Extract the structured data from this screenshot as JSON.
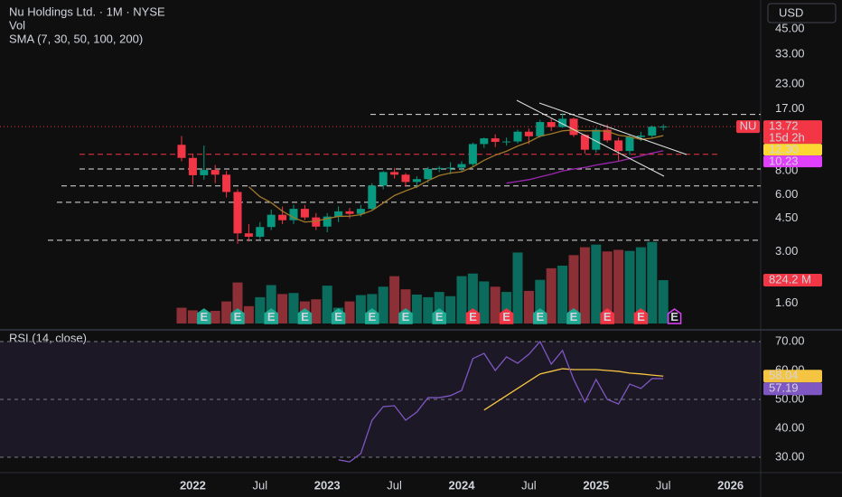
{
  "chart_data": [
    {
      "type": "candlestick",
      "title": "Nu Holdings Ltd. · 1M · NYSE",
      "currency": "USD",
      "symbol": "NU",
      "countdown": "15d 2h",
      "indicator": "SMA (7, 30, 50, 100, 200)",
      "log_scale": true,
      "up_color": "#089981",
      "down_color": "#f23645",
      "categories": [
        null,
        "2022",
        null,
        null,
        null,
        null,
        null,
        "Jul",
        null,
        null,
        null,
        null,
        null,
        "2023",
        null,
        null,
        null,
        null,
        null,
        "Jul",
        null,
        null,
        null,
        null,
        null,
        "2024",
        null,
        null,
        null,
        null,
        null,
        "Jul",
        null,
        null,
        null,
        null,
        null,
        "2025",
        null,
        null,
        null,
        null,
        null,
        "Jul",
        null,
        null,
        null,
        null,
        null,
        "2026",
        null,
        null
      ],
      "open": [
        11.0,
        9.38,
        7.6,
        8.1,
        7.65,
        6.2,
        3.75,
        3.6,
        4.05,
        4.7,
        4.4,
        5.05,
        4.55,
        4.07,
        4.6,
        4.9,
        4.75,
        5.05,
        6.7,
        7.9,
        7.65,
        7.0,
        7.25,
        8.2,
        8.3,
        8.33,
        8.7,
        11.1,
        11.9,
        11.4,
        11.45,
        12.9,
        12.2,
        14.5,
        13.65,
        15.1,
        12.4,
        10.36,
        13.2,
        11.6,
        10.2,
        12.1,
        12.3,
        13.7,
        null,
        null,
        null,
        null,
        null,
        null,
        null,
        null
      ],
      "high": [
        12.24,
        9.9,
        10.9,
        8.6,
        8.0,
        6.4,
        4.2,
        4.3,
        5.0,
        5.2,
        5.3,
        5.3,
        4.8,
        4.8,
        5.2,
        5.1,
        5.3,
        6.9,
        8.0,
        8.3,
        7.8,
        7.5,
        8.4,
        8.5,
        8.9,
        9.0,
        11.3,
        12.0,
        12.5,
        12.0,
        13.2,
        13.4,
        14.9,
        15.2,
        16.1,
        15.3,
        12.5,
        13.5,
        14.1,
        12.0,
        12.4,
        12.9,
        13.9,
        14.1,
        null,
        null,
        null,
        null,
        null,
        null,
        null,
        null
      ],
      "low": [
        9.0,
        6.8,
        7.2,
        6.9,
        5.8,
        3.3,
        3.4,
        3.5,
        3.9,
        4.2,
        4.2,
        4.4,
        3.9,
        3.8,
        4.3,
        4.5,
        4.6,
        5.0,
        6.4,
        7.3,
        6.6,
        6.5,
        6.9,
        7.9,
        7.7,
        7.9,
        8.5,
        10.6,
        10.7,
        10.9,
        11.2,
        11.1,
        12.0,
        13.0,
        13.5,
        12.1,
        9.9,
        10.0,
        11.3,
        9.0,
        9.7,
        11.5,
        11.9,
        13.1,
        null,
        null,
        null,
        null,
        null,
        null,
        null,
        null
      ],
      "close": [
        9.38,
        7.6,
        8.1,
        7.65,
        6.2,
        3.75,
        3.6,
        4.05,
        4.7,
        4.4,
        5.05,
        4.55,
        4.07,
        4.6,
        4.9,
        4.75,
        5.05,
        6.7,
        7.9,
        7.65,
        7.0,
        7.25,
        8.2,
        8.3,
        8.33,
        8.7,
        11.1,
        11.9,
        11.4,
        11.45,
        12.9,
        12.2,
        14.5,
        13.65,
        15.1,
        12.4,
        10.36,
        13.2,
        11.6,
        10.2,
        12.1,
        12.3,
        13.7,
        13.72,
        null,
        null,
        null,
        null,
        null,
        null,
        null,
        null
      ],
      "ylim": [
        1.2,
        63.9
      ],
      "yticks": [
        {
          "value": 45,
          "label": "45.00"
        },
        {
          "value": 33,
          "label": "33.00"
        },
        {
          "value": 23,
          "label": "23.00"
        },
        {
          "value": 17,
          "label": "17.00"
        },
        {
          "value": 8,
          "label": "8.00"
        },
        {
          "value": 6,
          "label": "6.00"
        },
        {
          "value": 4.5,
          "label": "4.50"
        },
        {
          "value": 3,
          "label": "3.00"
        },
        {
          "value": 1.6,
          "label": "1.60"
        }
      ],
      "y3lim": [
        0,
        6150
      ],
      "levels": [
        {
          "value": 15.9,
          "color": "#e0e0e0"
        },
        {
          "value": 9.8,
          "color": "#f23645"
        },
        {
          "value": 8.2,
          "color": "#e0e0e0"
        },
        {
          "value": 6.67,
          "color": "#e0e0e0"
        },
        {
          "value": 5.47,
          "color": "#e0e0e0"
        },
        {
          "value": 3.45,
          "color": "#e0e0e0"
        }
      ],
      "earnings": [
        null,
        null,
        "E",
        null,
        null,
        "E",
        null,
        null,
        "E",
        null,
        null,
        "E",
        null,
        null,
        "E",
        null,
        null,
        "E",
        null,
        null,
        "E",
        null,
        null,
        "E",
        null,
        null,
        "E",
        null,
        null,
        "E",
        null,
        null,
        "E",
        null,
        null,
        "E",
        null,
        null,
        "E",
        null,
        null,
        "E",
        null,
        null,
        "E",
        null,
        null,
        null,
        null,
        null,
        null,
        null
      ],
      "earnings_colors": [
        null,
        null,
        "#22ab94",
        null,
        null,
        "#22ab94",
        null,
        null,
        "#22ab94",
        null,
        null,
        "#22ab94",
        null,
        null,
        "#22ab94",
        null,
        null,
        "#22ab94",
        null,
        null,
        "#22ab94",
        null,
        null,
        "#22ab94",
        null,
        null,
        "#f23645",
        null,
        null,
        "#f23645",
        null,
        null,
        "#22ab94",
        null,
        null,
        "#22ab94",
        null,
        null,
        "#f23645",
        null,
        null,
        "#f23645",
        null,
        null,
        "#e040fb",
        null,
        null,
        null,
        null,
        null,
        null,
        null
      ],
      "series": [
        {
          "name": "Vol",
          "type": "bar",
          "axis": "y3",
          "up_color": "#0b6b5c",
          "down_color": "#8c2f36",
          "tag_color": "#f23645",
          "values": [
            300,
            250,
            200,
            240,
            420,
            780,
            330,
            500,
            730,
            560,
            580,
            420,
            460,
            720,
            300,
            420,
            540,
            560,
            700,
            900,
            650,
            550,
            500,
            600,
            520,
            900,
            950,
            800,
            700,
            600,
            1350,
            620,
            830,
            1050,
            1100,
            1300,
            1450,
            1500,
            1370,
            1400,
            1380,
            1450,
            1550,
            824.2,
            null,
            null,
            null,
            null,
            null,
            null,
            null,
            null
          ],
          "value_labels": [
            null,
            null,
            null,
            null,
            null,
            null,
            null,
            null,
            null,
            null,
            null,
            null,
            null,
            null,
            null,
            null,
            null,
            null,
            null,
            null,
            null,
            null,
            null,
            null,
            null,
            null,
            null,
            null,
            null,
            null,
            null,
            null,
            null,
            null,
            null,
            null,
            null,
            null,
            null,
            null,
            null,
            null,
            null,
            "824.2 M",
            null,
            null,
            null,
            null,
            null,
            null,
            null,
            null
          ]
        },
        {
          "type": "line",
          "color": "#fdd835",
          "line_color": "#a0782a",
          "values": [
            null,
            null,
            null,
            null,
            null,
            null,
            6.61,
            5.85,
            5.44,
            4.91,
            4.54,
            4.3,
            4.35,
            4.49,
            4.61,
            4.62,
            4.71,
            4.95,
            5.42,
            5.94,
            6.28,
            6.61,
            7.11,
            7.57,
            7.8,
            7.92,
            8.41,
            9.11,
            9.7,
            10.17,
            10.83,
            11.38,
            12.21,
            12.57,
            13.03,
            13.17,
            13.02,
            13.06,
            12.97,
            12.36,
            12.14,
            11.74,
            11.92,
            12.3,
            null,
            null,
            null,
            null,
            null,
            null,
            null,
            null
          ],
          "value_labels": [
            null,
            null,
            null,
            null,
            null,
            null,
            null,
            null,
            null,
            null,
            null,
            null,
            null,
            null,
            null,
            null,
            null,
            null,
            null,
            null,
            null,
            null,
            null,
            null,
            null,
            null,
            null,
            null,
            null,
            null,
            null,
            null,
            null,
            null,
            null,
            null,
            null,
            null,
            null,
            null,
            null,
            null,
            null,
            "12.30",
            null,
            null,
            null,
            null,
            null,
            null,
            null,
            null
          ]
        },
        {
          "type": "line",
          "color": "#e040fb",
          "line_color": "#9c27b0",
          "values": [
            null,
            null,
            null,
            null,
            null,
            null,
            null,
            null,
            null,
            null,
            null,
            null,
            null,
            null,
            null,
            null,
            null,
            null,
            null,
            null,
            null,
            null,
            null,
            null,
            null,
            null,
            null,
            null,
            null,
            6.9,
            7.05,
            7.2,
            7.45,
            7.7,
            8.0,
            8.2,
            8.35,
            8.6,
            8.8,
            9.0,
            9.3,
            9.6,
            9.95,
            10.23,
            null,
            null,
            null,
            null,
            null,
            null,
            null,
            null
          ]
        }
      ]
    },
    {
      "type": "line",
      "title": "RSI (14, close)",
      "ylim": [
        25,
        72.8
      ],
      "yticks": [
        {
          "value": 70,
          "label": "70.00"
        },
        {
          "value": 60,
          "label": "60.00"
        },
        {
          "value": 50,
          "label": "50.00"
        },
        {
          "value": 40,
          "label": "40.00"
        },
        {
          "value": 30,
          "label": "30.00"
        }
      ],
      "band": [
        30,
        70
      ],
      "hlines": [
        70,
        50,
        30
      ],
      "series": [
        {
          "color": "#f5c542",
          "values": [
            null,
            null,
            null,
            null,
            null,
            null,
            null,
            null,
            null,
            null,
            null,
            null,
            null,
            null,
            null,
            null,
            null,
            null,
            null,
            null,
            null,
            null,
            null,
            null,
            null,
            null,
            null,
            46.3,
            48.8,
            51.3,
            53.8,
            56.3,
            58.8,
            59.7,
            60.6,
            60.3,
            60.3,
            60.3,
            60.0,
            59.7,
            59.1,
            58.8,
            58.4,
            58.04,
            null,
            null,
            null,
            null,
            null,
            null,
            null,
            null
          ]
        },
        {
          "color": "#7e57c2",
          "values": [
            null,
            null,
            null,
            null,
            null,
            null,
            null,
            null,
            null,
            null,
            null,
            null,
            null,
            null,
            29.1,
            28.4,
            31.3,
            42.8,
            47.5,
            47.8,
            42.8,
            45.6,
            50.6,
            50.6,
            51.3,
            53.1,
            64.1,
            65.9,
            60.0,
            64.7,
            62.5,
            65.6,
            70.0,
            62.2,
            66.9,
            56.9,
            49.1,
            56.9,
            50.0,
            48.4,
            55.3,
            53.8,
            57.2,
            57.19,
            null,
            null,
            null,
            null,
            null,
            null,
            null,
            null
          ]
        }
      ]
    }
  ]
}
